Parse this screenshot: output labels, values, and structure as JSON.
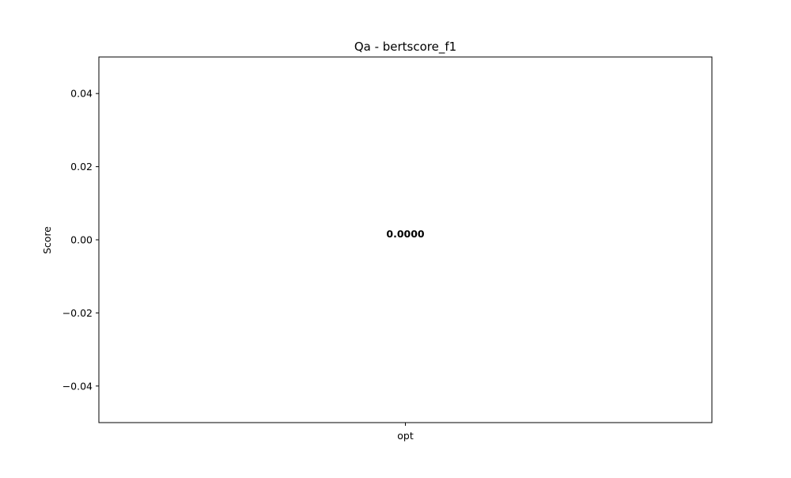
{
  "chart_data": {
    "type": "bar",
    "title": "Qa - bertscore_f1",
    "xlabel": "",
    "ylabel": "Score",
    "categories": [
      "opt"
    ],
    "values": [
      0.0
    ],
    "data_labels": [
      "0.0000"
    ],
    "ylim": [
      -0.05,
      0.05
    ],
    "yticks": [
      -0.04,
      -0.02,
      0.0,
      0.02,
      0.04
    ],
    "ytick_labels": [
      "−0.04",
      "−0.02",
      "0.00",
      "0.02",
      "0.04"
    ],
    "grid": false,
    "legend": "none",
    "colors": {
      "bar": "#1f77b4",
      "axes": "#000000",
      "background": "#ffffff"
    }
  }
}
